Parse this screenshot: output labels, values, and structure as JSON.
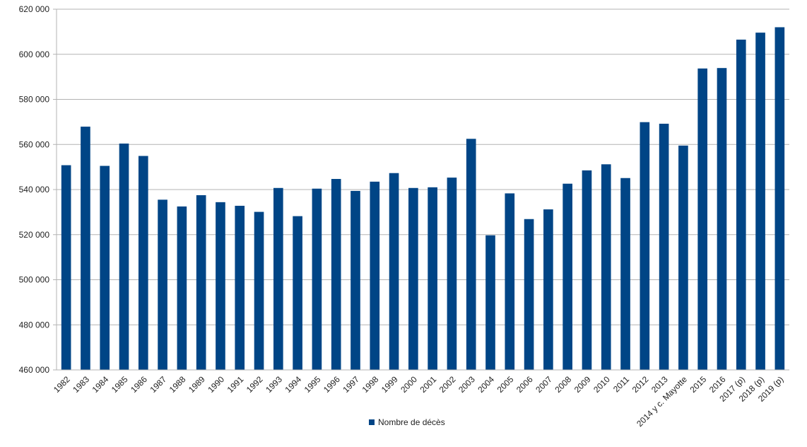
{
  "colors": {
    "bar": "#004586",
    "grid": "#b3b3b3",
    "axis": "#b3b3b3"
  },
  "chart_data": {
    "type": "bar",
    "title": "",
    "xlabel": "",
    "ylabel": "",
    "ylim": [
      460000,
      620000
    ],
    "yticks": [
      460000,
      480000,
      500000,
      520000,
      540000,
      560000,
      580000,
      600000,
      620000
    ],
    "ytick_labels": [
      "460 000",
      "480 000",
      "500 000",
      "520 000",
      "540 000",
      "560 000",
      "580 000",
      "600 000",
      "620 000"
    ],
    "grid": true,
    "legend_position": "bottom",
    "categories": [
      "1982",
      "1983",
      "1984",
      "1985",
      "1986",
      "1987",
      "1988",
      "1989",
      "1990",
      "1991",
      "1992",
      "1993",
      "1994",
      "1995",
      "1996",
      "1997",
      "1998",
      "1999",
      "2000",
      "2001",
      "2002",
      "2003",
      "2004",
      "2005",
      "2006",
      "2007",
      "2008",
      "2009",
      "2010",
      "2011",
      "2012",
      "2013",
      "2014 y c. Mayotte",
      "2015",
      "2016",
      "2017 (p)",
      "2018 (p)",
      "2019 (p)"
    ],
    "series": [
      {
        "name": "Nombre de décès",
        "values": [
          550800,
          567900,
          550500,
          560400,
          554900,
          535500,
          532500,
          537500,
          534400,
          532800,
          530100,
          540700,
          528200,
          540400,
          544700,
          539400,
          543500,
          547300,
          540700,
          541000,
          545300,
          562500,
          519700,
          538300,
          526900,
          531200,
          542600,
          548500,
          551200,
          545100,
          569900,
          569200,
          559500,
          593700,
          593900,
          606500,
          609600,
          612000
        ]
      }
    ]
  }
}
